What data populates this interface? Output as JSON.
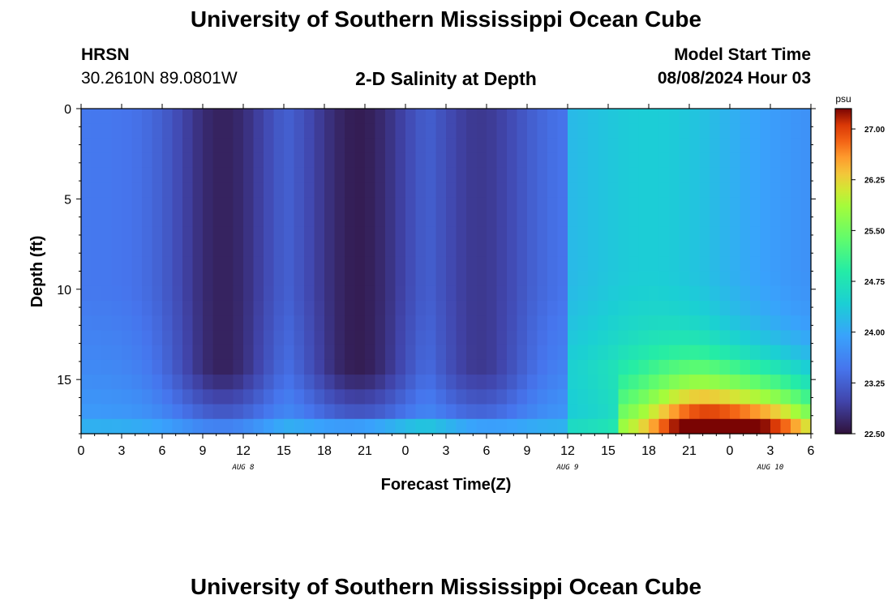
{
  "header": {
    "title": "University of Southern Mississippi Ocean Cube",
    "station": "HRSN",
    "coords": "30.2610N  89.0801W",
    "subtitle": "2-D Salinity at Depth",
    "model_start_label": "Model Start Time",
    "model_start_value": "08/08/2024 Hour 03"
  },
  "footer": {
    "title": "University of Southern Mississippi Ocean Cube"
  },
  "chart_data": {
    "type": "heatmap",
    "title": "2-D Salinity at Depth",
    "xlabel": "Forecast Time(Z)",
    "ylabel": "Depth (ft)",
    "x_ticks": [
      "0",
      "3",
      "6",
      "9",
      "12",
      "15",
      "18",
      "21",
      "0",
      "3",
      "6",
      "9",
      "12",
      "15",
      "18",
      "21",
      "0",
      "3",
      "6"
    ],
    "x_range_hours": [
      0,
      54
    ],
    "date_labels": [
      {
        "label": "AUG 8",
        "hour": 12
      },
      {
        "label": "AUG 9",
        "hour": 36
      },
      {
        "label": "AUG 10",
        "hour": 51
      }
    ],
    "y_ticks": [
      "0",
      "5",
      "10",
      "15"
    ],
    "y_tick_values": [
      0,
      5,
      10,
      15
    ],
    "y_range": [
      0,
      18
    ],
    "y_inverted": true,
    "colorbar": {
      "unit": "psu",
      "min": 22.5,
      "max": 27.3,
      "ticks": [
        "22.50",
        "23.25",
        "24.00",
        "24.75",
        "25.50",
        "26.25",
        "27.00"
      ],
      "tick_values": [
        22.5,
        23.25,
        24.0,
        24.75,
        25.5,
        26.25,
        27.0
      ],
      "colormap": "turbo"
    },
    "keypoints": [
      {
        "hour": 0,
        "depth_ft": 0,
        "salinity_psu": 23.6
      },
      {
        "hour": 4,
        "depth_ft": 0,
        "salinity_psu": 23.3
      },
      {
        "hour": 8,
        "depth_ft": 2,
        "salinity_psu": 22.75
      },
      {
        "hour": 20.5,
        "depth_ft": 2,
        "salinity_psu": 22.55
      },
      {
        "hour": 32,
        "depth_ft": 3,
        "salinity_psu": 22.9
      },
      {
        "hour": 36,
        "depth_ft": 3,
        "salinity_psu": 23.6
      },
      {
        "hour": 42,
        "depth_ft": 5,
        "salinity_psu": 24.3
      },
      {
        "hour": 52,
        "depth_ft": 5,
        "salinity_psu": 23.8
      },
      {
        "hour": 45,
        "depth_ft": 13,
        "salinity_psu": 25.3
      },
      {
        "hour": 51,
        "depth_ft": 15,
        "salinity_psu": 26.0
      },
      {
        "hour": 30,
        "depth_ft": 15,
        "salinity_psu": 23.2
      },
      {
        "hour": 51,
        "depth_ft": 17.8,
        "salinity_psu": 27.3
      }
    ],
    "grid": false,
    "legend": "right"
  }
}
